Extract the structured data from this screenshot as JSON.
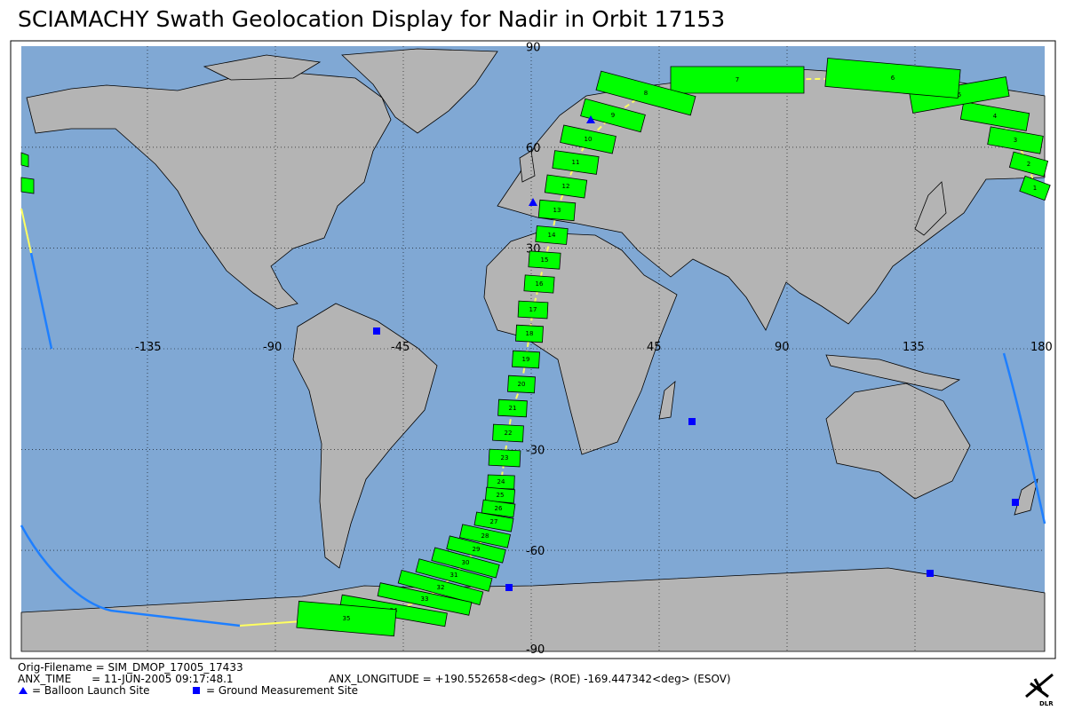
{
  "title": "SCIAMACHY Swath Geolocation Display for Nadir in Orbit 17153",
  "map": {
    "lat_labels": [
      90,
      60,
      30,
      -30,
      -60,
      -90
    ],
    "lon_labels": [
      -135,
      -90,
      -45,
      45,
      90,
      135,
      180
    ],
    "swath_segments": [
      1,
      2,
      3,
      4,
      5,
      6,
      7,
      8,
      9,
      10,
      11,
      12,
      13,
      14,
      15,
      16,
      17,
      18,
      19,
      20,
      21,
      22,
      23,
      24,
      25,
      26,
      27,
      28,
      29,
      30,
      31,
      32,
      33,
      34,
      35
    ]
  },
  "footer": {
    "filename": "Orig-Filename = SIM_DMOP_17005_17433",
    "anx_time": "ANX_TIME      = 11-JUN-2005 09:17:48.1",
    "anx_longitude": "ANX_LONGITUDE = +190.552658<deg> (ROE) -169.447342<deg> (ESOV)",
    "legend_balloon": "= Balloon Launch Site",
    "legend_ground": "= Ground Measurement Site",
    "logo": "DLR"
  }
}
